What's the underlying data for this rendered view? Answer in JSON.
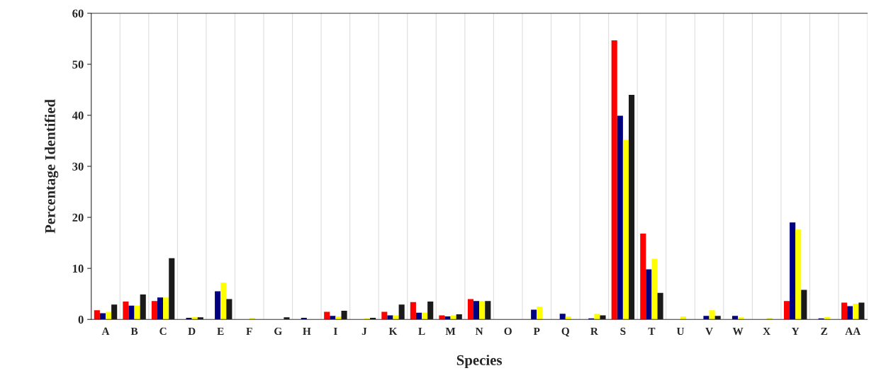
{
  "chart_data": {
    "type": "bar",
    "xlabel": "Species",
    "ylabel": "Percentage Identified",
    "categories": [
      "A",
      "B",
      "C",
      "D",
      "E",
      "F",
      "G",
      "H",
      "I",
      "J",
      "K",
      "L",
      "M",
      "N",
      "O",
      "P",
      "Q",
      "R",
      "S",
      "T",
      "U",
      "V",
      "W",
      "X",
      "Y",
      "Z",
      "AA"
    ],
    "series": [
      {
        "color": "#ff0000",
        "values": [
          1.8,
          3.5,
          3.6,
          0,
          0,
          0,
          0,
          0,
          1.5,
          0,
          1.5,
          3.4,
          0.8,
          4.0,
          0,
          0,
          0,
          0,
          54.7,
          16.8,
          0,
          0,
          0,
          0,
          3.6,
          0,
          3.3
        ]
      },
      {
        "color": "#000080",
        "values": [
          1.2,
          2.7,
          4.3,
          0.3,
          5.5,
          0,
          0,
          0.3,
          0.7,
          null,
          0.8,
          1.3,
          0.6,
          3.6,
          0,
          1.9,
          1.1,
          0.2,
          39.9,
          9.8,
          0,
          0.7,
          0.7,
          0,
          19.0,
          0.2,
          2.6
        ]
      },
      {
        "color": "#ffff00",
        "values": [
          1.5,
          2.7,
          4.3,
          0.5,
          7.2,
          0.3,
          0,
          0,
          0.6,
          0.2,
          0.8,
          1.3,
          0.8,
          3.6,
          0,
          2.5,
          0.6,
          1.1,
          35.2,
          11.9,
          0.6,
          1.8,
          0.4,
          0.3,
          17.6,
          0.5,
          3.1
        ]
      },
      {
        "color": "#1a1a1a",
        "values": [
          2.9,
          4.9,
          12.0,
          0.4,
          4.0,
          0,
          0.4,
          null,
          1.7,
          0.3,
          2.9,
          3.5,
          1.0,
          3.6,
          0,
          null,
          0,
          0.8,
          44.0,
          5.2,
          0,
          0.7,
          0,
          0,
          5.8,
          null,
          3.3
        ]
      }
    ],
    "ylim": [
      0,
      60
    ],
    "yticks": [
      0,
      10,
      20,
      30,
      40,
      50,
      60
    ],
    "grid": "x",
    "legend": false
  }
}
